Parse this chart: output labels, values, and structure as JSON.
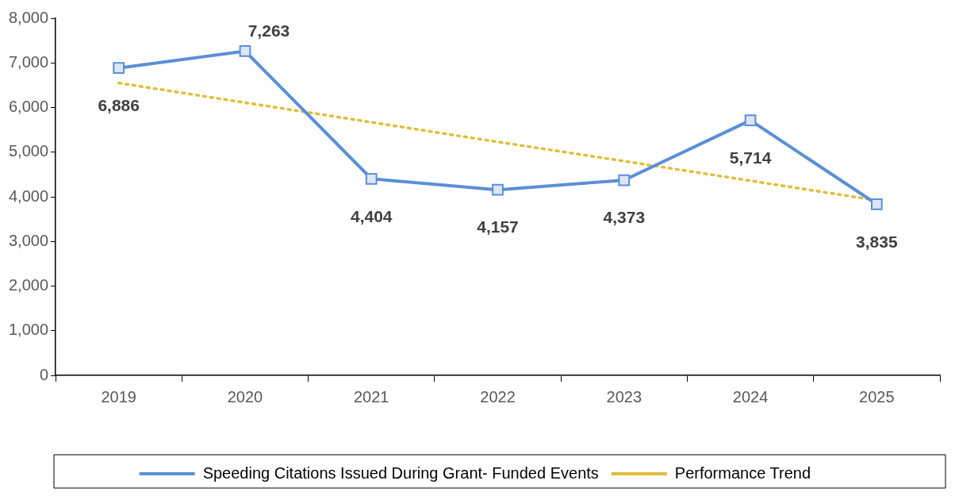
{
  "chart_data": {
    "type": "line",
    "categories": [
      "2019",
      "2020",
      "2021",
      "2022",
      "2023",
      "2024",
      "2025"
    ],
    "series": [
      {
        "name": "Speeding Citations Issued During Grant- Funded Events",
        "color": "#5b8fd6",
        "values": [
          6886,
          7263,
          4404,
          4157,
          4373,
          5714,
          3835
        ],
        "value_labels": [
          "6,886",
          "7,263",
          "4,404",
          "4,157",
          "4,373",
          "5,714",
          "3,835"
        ],
        "marker": "square",
        "line_style": "solid"
      },
      {
        "name": "Performance Trend",
        "color": "#e0bf3a",
        "values": [
          6550,
          6110,
          5670,
          5230,
          4800,
          4360,
          3920
        ],
        "marker": "none",
        "line_style": "dotted"
      }
    ],
    "ylim": [
      0,
      8000
    ],
    "yticks": [
      0,
      {
        "value": 1000,
        "label": "1,000"
      },
      {
        "value": 2000,
        "label": "2,000"
      },
      {
        "value": 3000,
        "label": "3,000"
      },
      {
        "value": 4000,
        "label": "4,000"
      },
      {
        "value": 5000,
        "label": "5,000"
      },
      {
        "value": 6000,
        "label": "6,000"
      },
      {
        "value": 7000,
        "label": "7,000"
      },
      {
        "value": 8000,
        "label": "8,000"
      }
    ],
    "grid": false,
    "legend": "bottom"
  }
}
